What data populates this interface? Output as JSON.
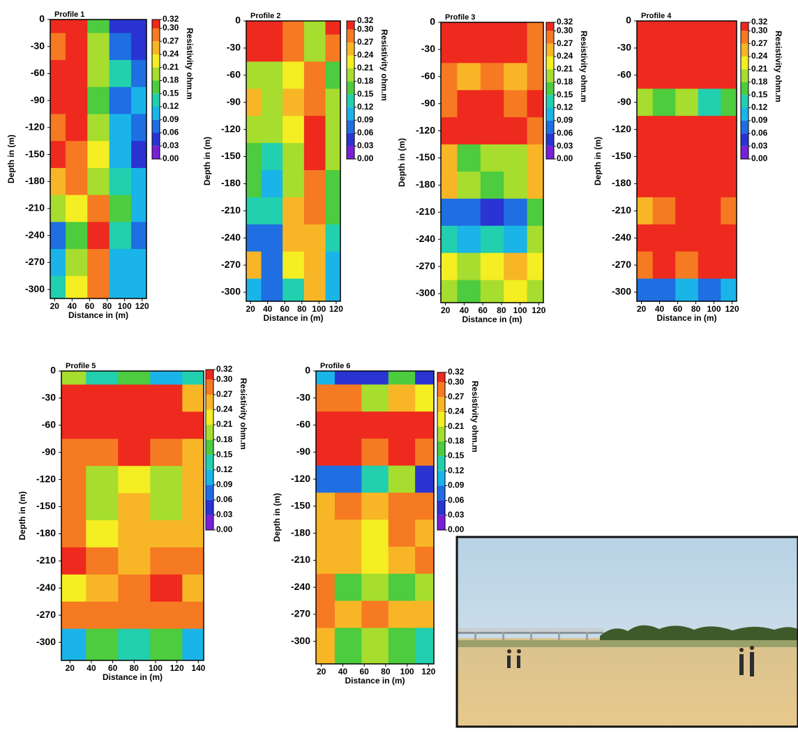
{
  "chart_data": [
    {
      "type": "contour",
      "title": "Profile 1",
      "x_label": "Distance in (m)",
      "y_label": "Depth in (m)",
      "colorbar_label": "Resistivity ohm.m",
      "x": [
        20,
        45,
        70,
        95,
        120
      ],
      "y": [
        0,
        -30,
        -60,
        -90,
        -120,
        -150,
        -180,
        -210,
        -240,
        -270,
        -300
      ],
      "z": [
        [
          0.31,
          0.3,
          0.16,
          0.05,
          0.03
        ],
        [
          0.28,
          0.31,
          0.18,
          0.06,
          0.04
        ],
        [
          0.31,
          0.31,
          0.2,
          0.12,
          0.08
        ],
        [
          0.31,
          0.3,
          0.15,
          0.06,
          0.09
        ],
        [
          0.29,
          0.31,
          0.18,
          0.1,
          0.07
        ],
        [
          0.3,
          0.29,
          0.22,
          0.1,
          0.05
        ],
        [
          0.25,
          0.28,
          0.18,
          0.12,
          0.09
        ],
        [
          0.2,
          0.22,
          0.27,
          0.15,
          0.1
        ],
        [
          0.07,
          0.16,
          0.3,
          0.12,
          0.08
        ],
        [
          0.09,
          0.2,
          0.29,
          0.11,
          0.09
        ],
        [
          0.12,
          0.22,
          0.28,
          0.1,
          0.1
        ]
      ],
      "xlim": [
        15,
        125
      ],
      "ylim": [
        -310,
        0
      ],
      "xticks": [
        20,
        40,
        60,
        80,
        100,
        120
      ],
      "yticks": [
        0,
        -30,
        -60,
        -90,
        -120,
        -150,
        -180,
        -210,
        -240,
        -270,
        -300
      ],
      "levels": [
        {
          "value": 0.32,
          "label": "0.32"
        },
        {
          "value": 0.3,
          "label": "0.30"
        },
        {
          "value": 0.27,
          "label": "0.27"
        },
        {
          "value": 0.24,
          "label": "0.24"
        },
        {
          "value": 0.21,
          "label": "0.21"
        },
        {
          "value": 0.18,
          "label": "0.18"
        },
        {
          "value": 0.15,
          "label": "0.15"
        },
        {
          "value": 0.12,
          "label": "0.12"
        },
        {
          "value": 0.09,
          "label": "0.09"
        },
        {
          "value": 0.06,
          "label": "0.06"
        },
        {
          "value": 0.03,
          "label": "0.03"
        },
        {
          "value": 0,
          "label": "0.00"
        }
      ],
      "colors": [
        "#ee2a1e",
        "#f57a22",
        "#f8b626",
        "#f4ee22",
        "#a6dd2e",
        "#4ccc3e",
        "#22cfae",
        "#1ab4e8",
        "#1f6ee2",
        "#2a34d2",
        "#7a1fd6"
      ]
    },
    {
      "type": "contour",
      "title": "Profile 2",
      "x_label": "Distance in (m)",
      "y_label": "Depth in (m)",
      "colorbar_label": "Resistivity ohm.m",
      "x": [
        20,
        45,
        70,
        95,
        120
      ],
      "y": [
        0,
        -30,
        -60,
        -90,
        -120,
        -150,
        -180,
        -210,
        -240,
        -270,
        -300
      ],
      "z": [
        [
          0.31,
          0.31,
          0.28,
          0.2,
          0.3
        ],
        [
          0.3,
          0.31,
          0.29,
          0.18,
          0.28
        ],
        [
          0.2,
          0.18,
          0.22,
          0.29,
          0.15
        ],
        [
          0.25,
          0.2,
          0.26,
          0.28,
          0.2
        ],
        [
          0.18,
          0.2,
          0.22,
          0.3,
          0.18
        ],
        [
          0.15,
          0.13,
          0.18,
          0.3,
          0.2
        ],
        [
          0.17,
          0.1,
          0.2,
          0.29,
          0.16
        ],
        [
          0.12,
          0.12,
          0.26,
          0.27,
          0.15
        ],
        [
          0.06,
          0.07,
          0.24,
          0.25,
          0.12
        ],
        [
          0.25,
          0.08,
          0.22,
          0.24,
          0.1
        ],
        [
          0.1,
          0.08,
          0.14,
          0.26,
          0.1
        ]
      ],
      "xlim": [
        15,
        125
      ],
      "ylim": [
        -310,
        0
      ],
      "xticks": [
        20,
        40,
        60,
        80,
        100,
        120
      ],
      "yticks": [
        0,
        -30,
        -60,
        -90,
        -120,
        -150,
        -180,
        -210,
        -240,
        -270,
        -300
      ],
      "levels": [
        {
          "value": 0.32,
          "label": "0.32"
        },
        {
          "value": 0.3,
          "label": "0.30"
        },
        {
          "value": 0.27,
          "label": "0.27"
        },
        {
          "value": 0.24,
          "label": "0.24"
        },
        {
          "value": 0.21,
          "label": "0.21"
        },
        {
          "value": 0.18,
          "label": "0.18"
        },
        {
          "value": 0.15,
          "label": "0.15"
        },
        {
          "value": 0.12,
          "label": "0.12"
        },
        {
          "value": 0.09,
          "label": "0.09"
        },
        {
          "value": 0.06,
          "label": "0.06"
        },
        {
          "value": 0.03,
          "label": "0.03"
        },
        {
          "value": 0,
          "label": "0.00"
        }
      ],
      "colors": [
        "#ee2a1e",
        "#f57a22",
        "#f8b626",
        "#f4ee22",
        "#a6dd2e",
        "#4ccc3e",
        "#22cfae",
        "#1ab4e8",
        "#1f6ee2",
        "#2a34d2",
        "#7a1fd6"
      ]
    },
    {
      "type": "contour",
      "title": "Profile 3",
      "x_label": "Distance in (m)",
      "y_label": "Depth in (m)",
      "colorbar_label": "Resistivity ohm.m",
      "x": [
        20,
        45,
        70,
        95,
        120
      ],
      "y": [
        0,
        -30,
        -60,
        -90,
        -120,
        -150,
        -180,
        -210,
        -240,
        -270,
        -300
      ],
      "z": [
        [
          0.31,
          0.31,
          0.31,
          0.31,
          0.29
        ],
        [
          0.31,
          0.3,
          0.31,
          0.31,
          0.29
        ],
        [
          0.27,
          0.26,
          0.28,
          0.26,
          0.27
        ],
        [
          0.28,
          0.3,
          0.3,
          0.28,
          0.3
        ],
        [
          0.3,
          0.31,
          0.31,
          0.3,
          0.29
        ],
        [
          0.26,
          0.15,
          0.18,
          0.2,
          0.26
        ],
        [
          0.25,
          0.18,
          0.15,
          0.2,
          0.26
        ],
        [
          0.08,
          0.06,
          0.05,
          0.07,
          0.15
        ],
        [
          0.12,
          0.1,
          0.12,
          0.11,
          0.18
        ],
        [
          0.22,
          0.2,
          0.22,
          0.24,
          0.22
        ],
        [
          0.2,
          0.16,
          0.19,
          0.22,
          0.2
        ]
      ],
      "xlim": [
        15,
        125
      ],
      "ylim": [
        -310,
        0
      ],
      "xticks": [
        20,
        40,
        60,
        80,
        100,
        120
      ],
      "yticks": [
        0,
        -30,
        -60,
        -90,
        -120,
        -150,
        -180,
        -210,
        -240,
        -270,
        -300
      ],
      "levels": [
        {
          "value": 0.32,
          "label": "0.32"
        },
        {
          "value": 0.3,
          "label": "0.30"
        },
        {
          "value": 0.27,
          "label": "0.27"
        },
        {
          "value": 0.24,
          "label": "0.24"
        },
        {
          "value": 0.21,
          "label": "0.21"
        },
        {
          "value": 0.18,
          "label": "0.18"
        },
        {
          "value": 0.15,
          "label": "0.15"
        },
        {
          "value": 0.12,
          "label": "0.12"
        },
        {
          "value": 0.09,
          "label": "0.09"
        },
        {
          "value": 0.06,
          "label": "0.06"
        },
        {
          "value": 0.03,
          "label": "0.03"
        },
        {
          "value": 0,
          "label": "0.00"
        }
      ],
      "colors": [
        "#ee2a1e",
        "#f57a22",
        "#f8b626",
        "#f4ee22",
        "#a6dd2e",
        "#4ccc3e",
        "#22cfae",
        "#1ab4e8",
        "#1f6ee2",
        "#2a34d2",
        "#7a1fd6"
      ]
    },
    {
      "type": "contour",
      "title": "Profile 4",
      "x_label": "Distance in (m)",
      "y_label": "Depth in (m)",
      "colorbar_label": "Resistivity ohm.m",
      "x": [
        20,
        45,
        70,
        95,
        120
      ],
      "y": [
        0,
        -30,
        -60,
        -90,
        -120,
        -150,
        -180,
        -210,
        -240,
        -270,
        -300
      ],
      "z": [
        [
          0.31,
          0.31,
          0.31,
          0.31,
          0.31
        ],
        [
          0.31,
          0.31,
          0.31,
          0.31,
          0.31
        ],
        [
          0.31,
          0.3,
          0.31,
          0.31,
          0.31
        ],
        [
          0.2,
          0.15,
          0.18,
          0.12,
          0.15
        ],
        [
          0.31,
          0.31,
          0.31,
          0.3,
          0.31
        ],
        [
          0.31,
          0.31,
          0.31,
          0.31,
          0.31
        ],
        [
          0.31,
          0.31,
          0.31,
          0.31,
          0.31
        ],
        [
          0.26,
          0.29,
          0.3,
          0.3,
          0.28
        ],
        [
          0.31,
          0.31,
          0.31,
          0.31,
          0.31
        ],
        [
          0.27,
          0.3,
          0.29,
          0.3,
          0.3
        ],
        [
          0.06,
          0.08,
          0.1,
          0.07,
          0.1
        ]
      ],
      "xlim": [
        15,
        125
      ],
      "ylim": [
        -310,
        0
      ],
      "xticks": [
        20,
        40,
        60,
        80,
        100,
        120
      ],
      "yticks": [
        0,
        -30,
        -60,
        -90,
        -120,
        -150,
        -180,
        -210,
        -240,
        -270,
        -300
      ],
      "levels": [
        {
          "value": 0.32,
          "label": "0.32"
        },
        {
          "value": 0.3,
          "label": "0.30"
        },
        {
          "value": 0.27,
          "label": "0.27"
        },
        {
          "value": 0.24,
          "label": "0.24"
        },
        {
          "value": 0.21,
          "label": "0.21"
        },
        {
          "value": 0.18,
          "label": "0.18"
        },
        {
          "value": 0.15,
          "label": "0.15"
        },
        {
          "value": 0.12,
          "label": "0.12"
        },
        {
          "value": 0.09,
          "label": "0.09"
        },
        {
          "value": 0.06,
          "label": "0.06"
        },
        {
          "value": 0.03,
          "label": "0.03"
        },
        {
          "value": 0,
          "label": "0.00"
        }
      ],
      "colors": [
        "#ee2a1e",
        "#f57a22",
        "#f8b626",
        "#f4ee22",
        "#a6dd2e",
        "#4ccc3e",
        "#22cfae",
        "#1ab4e8",
        "#1f6ee2",
        "#2a34d2",
        "#7a1fd6"
      ]
    },
    {
      "type": "contour",
      "title": "Profile 5",
      "x_label": "Distance in (m)",
      "y_label": "Depth in (m)",
      "colorbar_label": "Resistivity ohm.m",
      "x": [
        20,
        50,
        80,
        110,
        140
      ],
      "y": [
        0,
        -30,
        -60,
        -90,
        -120,
        -150,
        -180,
        -210,
        -240,
        -270,
        -300
      ],
      "z": [
        [
          0.2,
          0.12,
          0.15,
          0.1,
          0.12
        ],
        [
          0.31,
          0.31,
          0.3,
          0.3,
          0.24
        ],
        [
          0.31,
          0.31,
          0.31,
          0.31,
          0.31
        ],
        [
          0.29,
          0.28,
          0.3,
          0.28,
          0.26
        ],
        [
          0.27,
          0.2,
          0.22,
          0.2,
          0.25
        ],
        [
          0.28,
          0.18,
          0.26,
          0.2,
          0.24
        ],
        [
          0.28,
          0.22,
          0.24,
          0.26,
          0.25
        ],
        [
          0.3,
          0.27,
          0.25,
          0.28,
          0.27
        ],
        [
          0.22,
          0.25,
          0.27,
          0.3,
          0.25
        ],
        [
          0.27,
          0.28,
          0.29,
          0.28,
          0.27
        ],
        [
          0.1,
          0.15,
          0.12,
          0.16,
          0.1
        ]
      ],
      "xlim": [
        12,
        145
      ],
      "ylim": [
        -320,
        0
      ],
      "xticks": [
        20,
        40,
        60,
        80,
        100,
        120,
        140
      ],
      "yticks": [
        0,
        -30,
        -60,
        -90,
        -120,
        -150,
        -180,
        -210,
        -240,
        -270,
        -300
      ],
      "levels": [
        {
          "value": 0.32,
          "label": "0.32"
        },
        {
          "value": 0.3,
          "label": "0.30"
        },
        {
          "value": 0.27,
          "label": "0.27"
        },
        {
          "value": 0.24,
          "label": "0.24"
        },
        {
          "value": 0.21,
          "label": "0.21"
        },
        {
          "value": 0.18,
          "label": "0.18"
        },
        {
          "value": 0.15,
          "label": "0.15"
        },
        {
          "value": 0.12,
          "label": "0.12"
        },
        {
          "value": 0.09,
          "label": "0.09"
        },
        {
          "value": 0.06,
          "label": "0.06"
        },
        {
          "value": 0.03,
          "label": "0.03"
        },
        {
          "value": 0,
          "label": "0.00"
        }
      ],
      "colors": [
        "#ee2a1e",
        "#f57a22",
        "#f8b626",
        "#f4ee22",
        "#a6dd2e",
        "#4ccc3e",
        "#22cfae",
        "#1ab4e8",
        "#1f6ee2",
        "#2a34d2",
        "#7a1fd6"
      ]
    },
    {
      "type": "contour",
      "title": "Profile 6",
      "x_label": "Distance in (m)",
      "y_label": "Depth in (m)",
      "colorbar_label": "Resistivity ohm.m",
      "x": [
        20,
        45,
        70,
        95,
        120
      ],
      "y": [
        0,
        -30,
        -60,
        -90,
        -120,
        -150,
        -180,
        -210,
        -240,
        -270,
        -300
      ],
      "z": [
        [
          0.1,
          0.05,
          0.03,
          0.15,
          0.05
        ],
        [
          0.28,
          0.29,
          0.2,
          0.26,
          0.22
        ],
        [
          0.31,
          0.31,
          0.31,
          0.31,
          0.3
        ],
        [
          0.31,
          0.3,
          0.29,
          0.3,
          0.28
        ],
        [
          0.06,
          0.08,
          0.12,
          0.18,
          0.05
        ],
        [
          0.25,
          0.27,
          0.26,
          0.27,
          0.28
        ],
        [
          0.26,
          0.24,
          0.23,
          0.27,
          0.26
        ],
        [
          0.26,
          0.24,
          0.23,
          0.25,
          0.27
        ],
        [
          0.27,
          0.16,
          0.18,
          0.15,
          0.2
        ],
        [
          0.28,
          0.25,
          0.27,
          0.24,
          0.26
        ],
        [
          0.26,
          0.16,
          0.18,
          0.16,
          0.12
        ]
      ],
      "xlim": [
        15,
        125
      ],
      "ylim": [
        -325,
        0
      ],
      "xticks": [
        20,
        40,
        60,
        80,
        100,
        120
      ],
      "yticks": [
        0,
        -30,
        -60,
        -90,
        -120,
        -150,
        -180,
        -210,
        -240,
        -270,
        -300
      ],
      "levels": [
        {
          "value": 0.32,
          "label": "0.32"
        },
        {
          "value": 0.3,
          "label": "0.30"
        },
        {
          "value": 0.27,
          "label": "0.27"
        },
        {
          "value": 0.24,
          "label": "0.24"
        },
        {
          "value": 0.21,
          "label": "0.21"
        },
        {
          "value": 0.18,
          "label": "0.18"
        },
        {
          "value": 0.15,
          "label": "0.15"
        },
        {
          "value": 0.12,
          "label": "0.12"
        },
        {
          "value": 0.09,
          "label": "0.09"
        },
        {
          "value": 0.06,
          "label": "0.06"
        },
        {
          "value": 0.03,
          "label": "0.03"
        },
        {
          "value": 0,
          "label": "0.00"
        }
      ],
      "colors": [
        "#ee2a1e",
        "#f57a22",
        "#f8b626",
        "#f4ee22",
        "#a6dd2e",
        "#4ccc3e",
        "#22cfae",
        "#1ab4e8",
        "#1f6ee2",
        "#2a34d2",
        "#7a1fd6"
      ]
    }
  ]
}
